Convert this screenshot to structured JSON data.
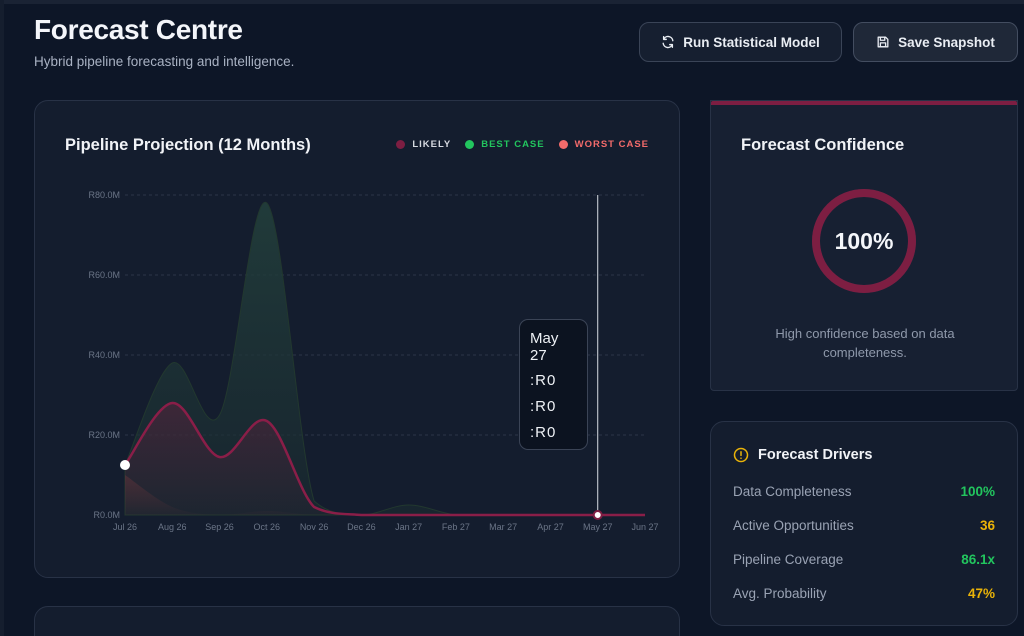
{
  "header": {
    "title": "Forecast Centre",
    "subtitle": "Hybrid pipeline forecasting and intelligence.",
    "run_label": "Run Statistical Model",
    "save_label": "Save Snapshot"
  },
  "chart_card": {
    "title": "Pipeline Projection (12 Months)",
    "legend": [
      {
        "label": "LIKELY",
        "color": "#7d1e42",
        "text_color": "#d6d9e0"
      },
      {
        "label": "BEST CASE",
        "color": "#22c55e",
        "text_color": "#22c55e"
      },
      {
        "label": "WORST CASE",
        "color": "#f36b6b",
        "text_color": "#f36b6b"
      }
    ],
    "tooltip": {
      "title": "May 27",
      "rows": [
        ":R0",
        ":R0",
        ":R0"
      ]
    }
  },
  "chart_data": {
    "type": "area",
    "categories": [
      "Jul 26",
      "Aug 26",
      "Sep 26",
      "Oct 26",
      "Nov 26",
      "Dec 26",
      "Jan 27",
      "Feb 27",
      "Mar 27",
      "Apr 27",
      "May 27",
      "Jun 27"
    ],
    "y_tick_labels": [
      "R0.0M",
      "R20.0M",
      "R40.0M",
      "R60.0M",
      "R80.0M"
    ],
    "ylim": [
      0,
      80
    ],
    "grid": true,
    "series": [
      {
        "name": "LIKELY",
        "color": "#8a1e48",
        "values": [
          12.5,
          28,
          14.5,
          23.5,
          2,
          0,
          0,
          0,
          0,
          0,
          0,
          0
        ]
      },
      {
        "name": "BEST CASE",
        "color": "#1f3a37",
        "values": [
          12.5,
          38,
          25,
          78,
          3.5,
          0,
          2.5,
          0,
          0,
          0,
          0,
          0
        ]
      },
      {
        "name": "WORST CASE",
        "color": "#5a2a33",
        "values": [
          10,
          2,
          0,
          1,
          0,
          0,
          0,
          0,
          0,
          0,
          0,
          0
        ]
      }
    ],
    "hover_category": "May 27"
  },
  "confidence": {
    "title": "Forecast Confidence",
    "value": "100%",
    "percent": 100,
    "description": "High confidence based on data completeness.",
    "ring_color": "#7d1e42"
  },
  "drivers": {
    "title": "Forecast Drivers",
    "items": [
      {
        "label": "Data Completeness",
        "value": "100%",
        "color": "#22c55e"
      },
      {
        "label": "Active Opportunities",
        "value": "36",
        "color": "#eab308"
      },
      {
        "label": "Pipeline Coverage",
        "value": "86.1x",
        "color": "#22c55e"
      },
      {
        "label": "Avg. Probability",
        "value": "47%",
        "color": "#eab308"
      }
    ]
  }
}
